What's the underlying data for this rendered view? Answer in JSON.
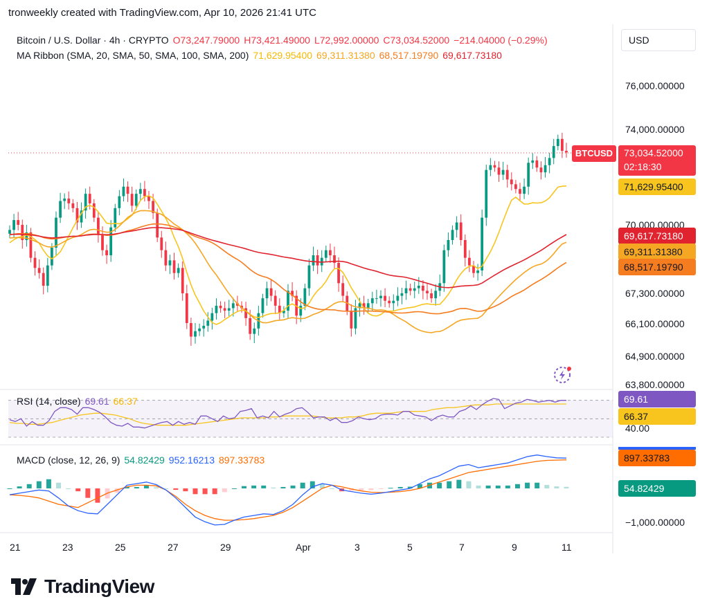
{
  "header": {
    "created_by": "tronweekly created with TradingView.com, Apr 10, 2026 21:41 UTC"
  },
  "currency_button": {
    "label": "USD"
  },
  "main_legend": {
    "symbol": "Bitcoin / U.S. Dollar · 4h · CRYPTO",
    "open": "O73,247.79000",
    "high": "H73,421.49000",
    "low": "L72,992.00000",
    "close": "C73,034.52000",
    "change": "−214.04000 (−0.29%)",
    "indicator_name": "MA Ribbon (SMA, 20, SMA, 50, SMA, 100, SMA, 200)",
    "ma_values": [
      "71,629.95400",
      "69,311.31380",
      "68,517.19790",
      "69,617.73180"
    ]
  },
  "price_axis": {
    "labels": [
      "76,000.00000",
      "74,000.00000",
      "70,000.00000",
      "67,300.00000",
      "66,100.00000",
      "64,900.00000",
      "63,800.00000"
    ]
  },
  "price_tags": {
    "symbol_tag": "BTCUSD",
    "last_price": "73,034.52000",
    "countdown": "02:18:30",
    "sma20": "71,629.95400",
    "sma200": "69,617.73180",
    "sma50": "69,311.31380",
    "sma100": "68,517.19790"
  },
  "rsi_legend": {
    "name": "RSI (14, close)",
    "rsi": "69.61",
    "ma": "66.37"
  },
  "rsi_axis": {
    "label": "40.00",
    "rsi_tag": "69.61",
    "ma_tag": "66.37"
  },
  "macd_legend": {
    "name": "MACD (close, 12, 26, 9)",
    "hist": "54.82429",
    "macd": "952.16213",
    "signal": "897.33783"
  },
  "macd_axis": {
    "label": "−1,000.00000",
    "signal_tag": "897.33783",
    "hist_tag": "54.82429"
  },
  "time_axis": [
    "21",
    "23",
    "25",
    "27",
    "29",
    "Apr",
    "3",
    "5",
    "7",
    "9",
    "11"
  ],
  "colors": {
    "up": "#089981",
    "down": "#f23645",
    "sma20": "#f7c51e",
    "sma50": "#f5a623",
    "sma100": "#f57c1f",
    "sma200": "#e0232e",
    "rsi": "#7e57c2",
    "rsi_ma": "#f7c51e",
    "macd": "#2962ff",
    "signal": "#ff6d00"
  },
  "logo": {
    "text": "TradingView"
  },
  "chart_data": [
    {
      "type": "candlestick",
      "title": "Bitcoin / U.S. Dollar · 4h · CRYPTO",
      "ylim": [
        63800,
        76500
      ],
      "closes": [
        69800,
        70200,
        70000,
        69400,
        69700,
        68700,
        68300,
        68100,
        67600,
        68400,
        69100,
        70300,
        71000,
        71100,
        70900,
        70700,
        70100,
        70600,
        71300,
        70900,
        70300,
        69600,
        69000,
        68800,
        69900,
        70700,
        71200,
        71600,
        71300,
        70800,
        71300,
        71500,
        71200,
        71000,
        70500,
        69500,
        69000,
        68400,
        68600,
        68100,
        68300,
        67300,
        66100,
        65600,
        65800,
        65900,
        66000,
        66200,
        66500,
        66800,
        66700,
        66600,
        66700,
        66900,
        66800,
        66700,
        66300,
        65700,
        65900,
        66500,
        67100,
        67500,
        67200,
        66800,
        66500,
        66600,
        67400,
        67200,
        66400,
        66800,
        67500,
        68400,
        68800,
        68400,
        68700,
        69000,
        68800,
        68500,
        67700,
        67200,
        66600,
        65900,
        66700,
        66900,
        66700,
        66900,
        67100,
        67100,
        67200,
        67000,
        66900,
        67000,
        67200,
        67300,
        67500,
        67400,
        67500,
        67600,
        67400,
        67300,
        67100,
        67400,
        67700,
        69000,
        69400,
        69800,
        70100,
        69400,
        68700,
        68400,
        68100,
        68200,
        70300,
        72300,
        72500,
        72400,
        72100,
        72300,
        71900,
        71700,
        71500,
        71300,
        71600,
        72600,
        72700,
        72400,
        72200,
        72500,
        72800,
        73300,
        73600,
        73100,
        73035
      ],
      "ma_series": [
        {
          "name": "SMA 20",
          "current": 71629.954
        },
        {
          "name": "SMA 50",
          "current": 69311.3138
        },
        {
          "name": "SMA 100",
          "current": 68517.1979
        },
        {
          "name": "SMA 200",
          "current": 69617.7318
        }
      ]
    },
    {
      "type": "line",
      "title": "RSI (14, close)",
      "rsi": [
        49,
        47,
        50,
        42,
        47,
        43,
        43,
        48,
        58,
        62,
        62,
        60,
        55,
        62,
        62,
        60,
        57,
        52,
        46,
        43,
        42,
        45,
        41,
        41,
        40,
        42,
        44,
        46,
        47,
        43,
        47,
        44,
        46,
        44,
        53,
        53,
        50,
        47,
        53,
        50,
        51,
        58,
        59,
        61,
        51,
        53,
        51,
        58,
        52,
        55,
        57,
        61,
        62,
        57,
        51,
        52,
        52,
        48,
        51,
        46,
        46,
        48,
        52,
        50,
        49,
        50,
        54,
        55,
        55,
        54,
        58,
        58,
        54,
        53,
        52,
        48,
        52,
        54,
        52,
        52,
        58,
        60,
        64,
        60,
        65,
        69,
        72,
        71,
        61,
        64,
        67,
        68,
        71,
        70,
        68,
        69,
        70,
        68,
        70,
        70
      ],
      "rsi_ma": [
        46,
        45,
        45,
        44,
        44,
        45,
        46,
        48,
        50,
        52,
        54,
        55,
        56,
        56,
        55,
        54,
        52,
        50,
        47,
        45,
        44,
        43,
        43,
        43,
        43,
        43,
        44,
        45,
        46,
        47,
        48,
        49,
        50,
        51,
        51,
        51,
        51,
        52,
        52,
        53,
        53,
        53,
        53,
        53,
        52,
        51,
        51,
        51,
        52,
        52,
        53,
        55,
        56,
        56,
        56,
        57,
        58,
        58,
        58,
        58,
        60,
        61,
        62,
        62,
        63,
        64,
        65,
        65,
        65,
        66,
        66,
        66,
        66,
        66,
        66,
        66,
        66,
        66,
        66,
        66
      ],
      "current_rsi": 69.61,
      "current_ma": 66.37,
      "level": 40
    },
    {
      "type": "bar",
      "title": "MACD (close, 12, 26, 9)",
      "macd": [
        -200,
        -150,
        -100,
        -50,
        -80,
        -300,
        -550,
        -700,
        -780,
        -800,
        -500,
        -200,
        100,
        150,
        200,
        120,
        -50,
        -300,
        -600,
        -900,
        -1050,
        -1150,
        -1130,
        -1000,
        -900,
        -850,
        -800,
        -820,
        -700,
        -500,
        -200,
        50,
        150,
        100,
        -50,
        -100,
        -150,
        -180,
        -150,
        -100,
        -50,
        0,
        150,
        300,
        400,
        550,
        700,
        750,
        650,
        700,
        750,
        800,
        900,
        1000,
        1050,
        1000,
        960,
        952
      ],
      "signal": [
        -200,
        -220,
        -250,
        -300,
        -400,
        -500,
        -550,
        -600,
        -450,
        -300,
        -150,
        -50,
        50,
        100,
        100,
        80,
        -50,
        -250,
        -500,
        -700,
        -850,
        -950,
        -1000,
        -1000,
        -980,
        -950,
        -900,
        -850,
        -750,
        -600,
        -400,
        -200,
        0,
        100,
        50,
        -20,
        -80,
        -120,
        -130,
        -120,
        -100,
        -60,
        0,
        100,
        200,
        300,
        400,
        500,
        550,
        600,
        650,
        700,
        750,
        800,
        850,
        880,
        890,
        897
      ],
      "current_macd": 952.16213,
      "current_signal": 897.33783,
      "current_hist": 54.82429
    }
  ]
}
